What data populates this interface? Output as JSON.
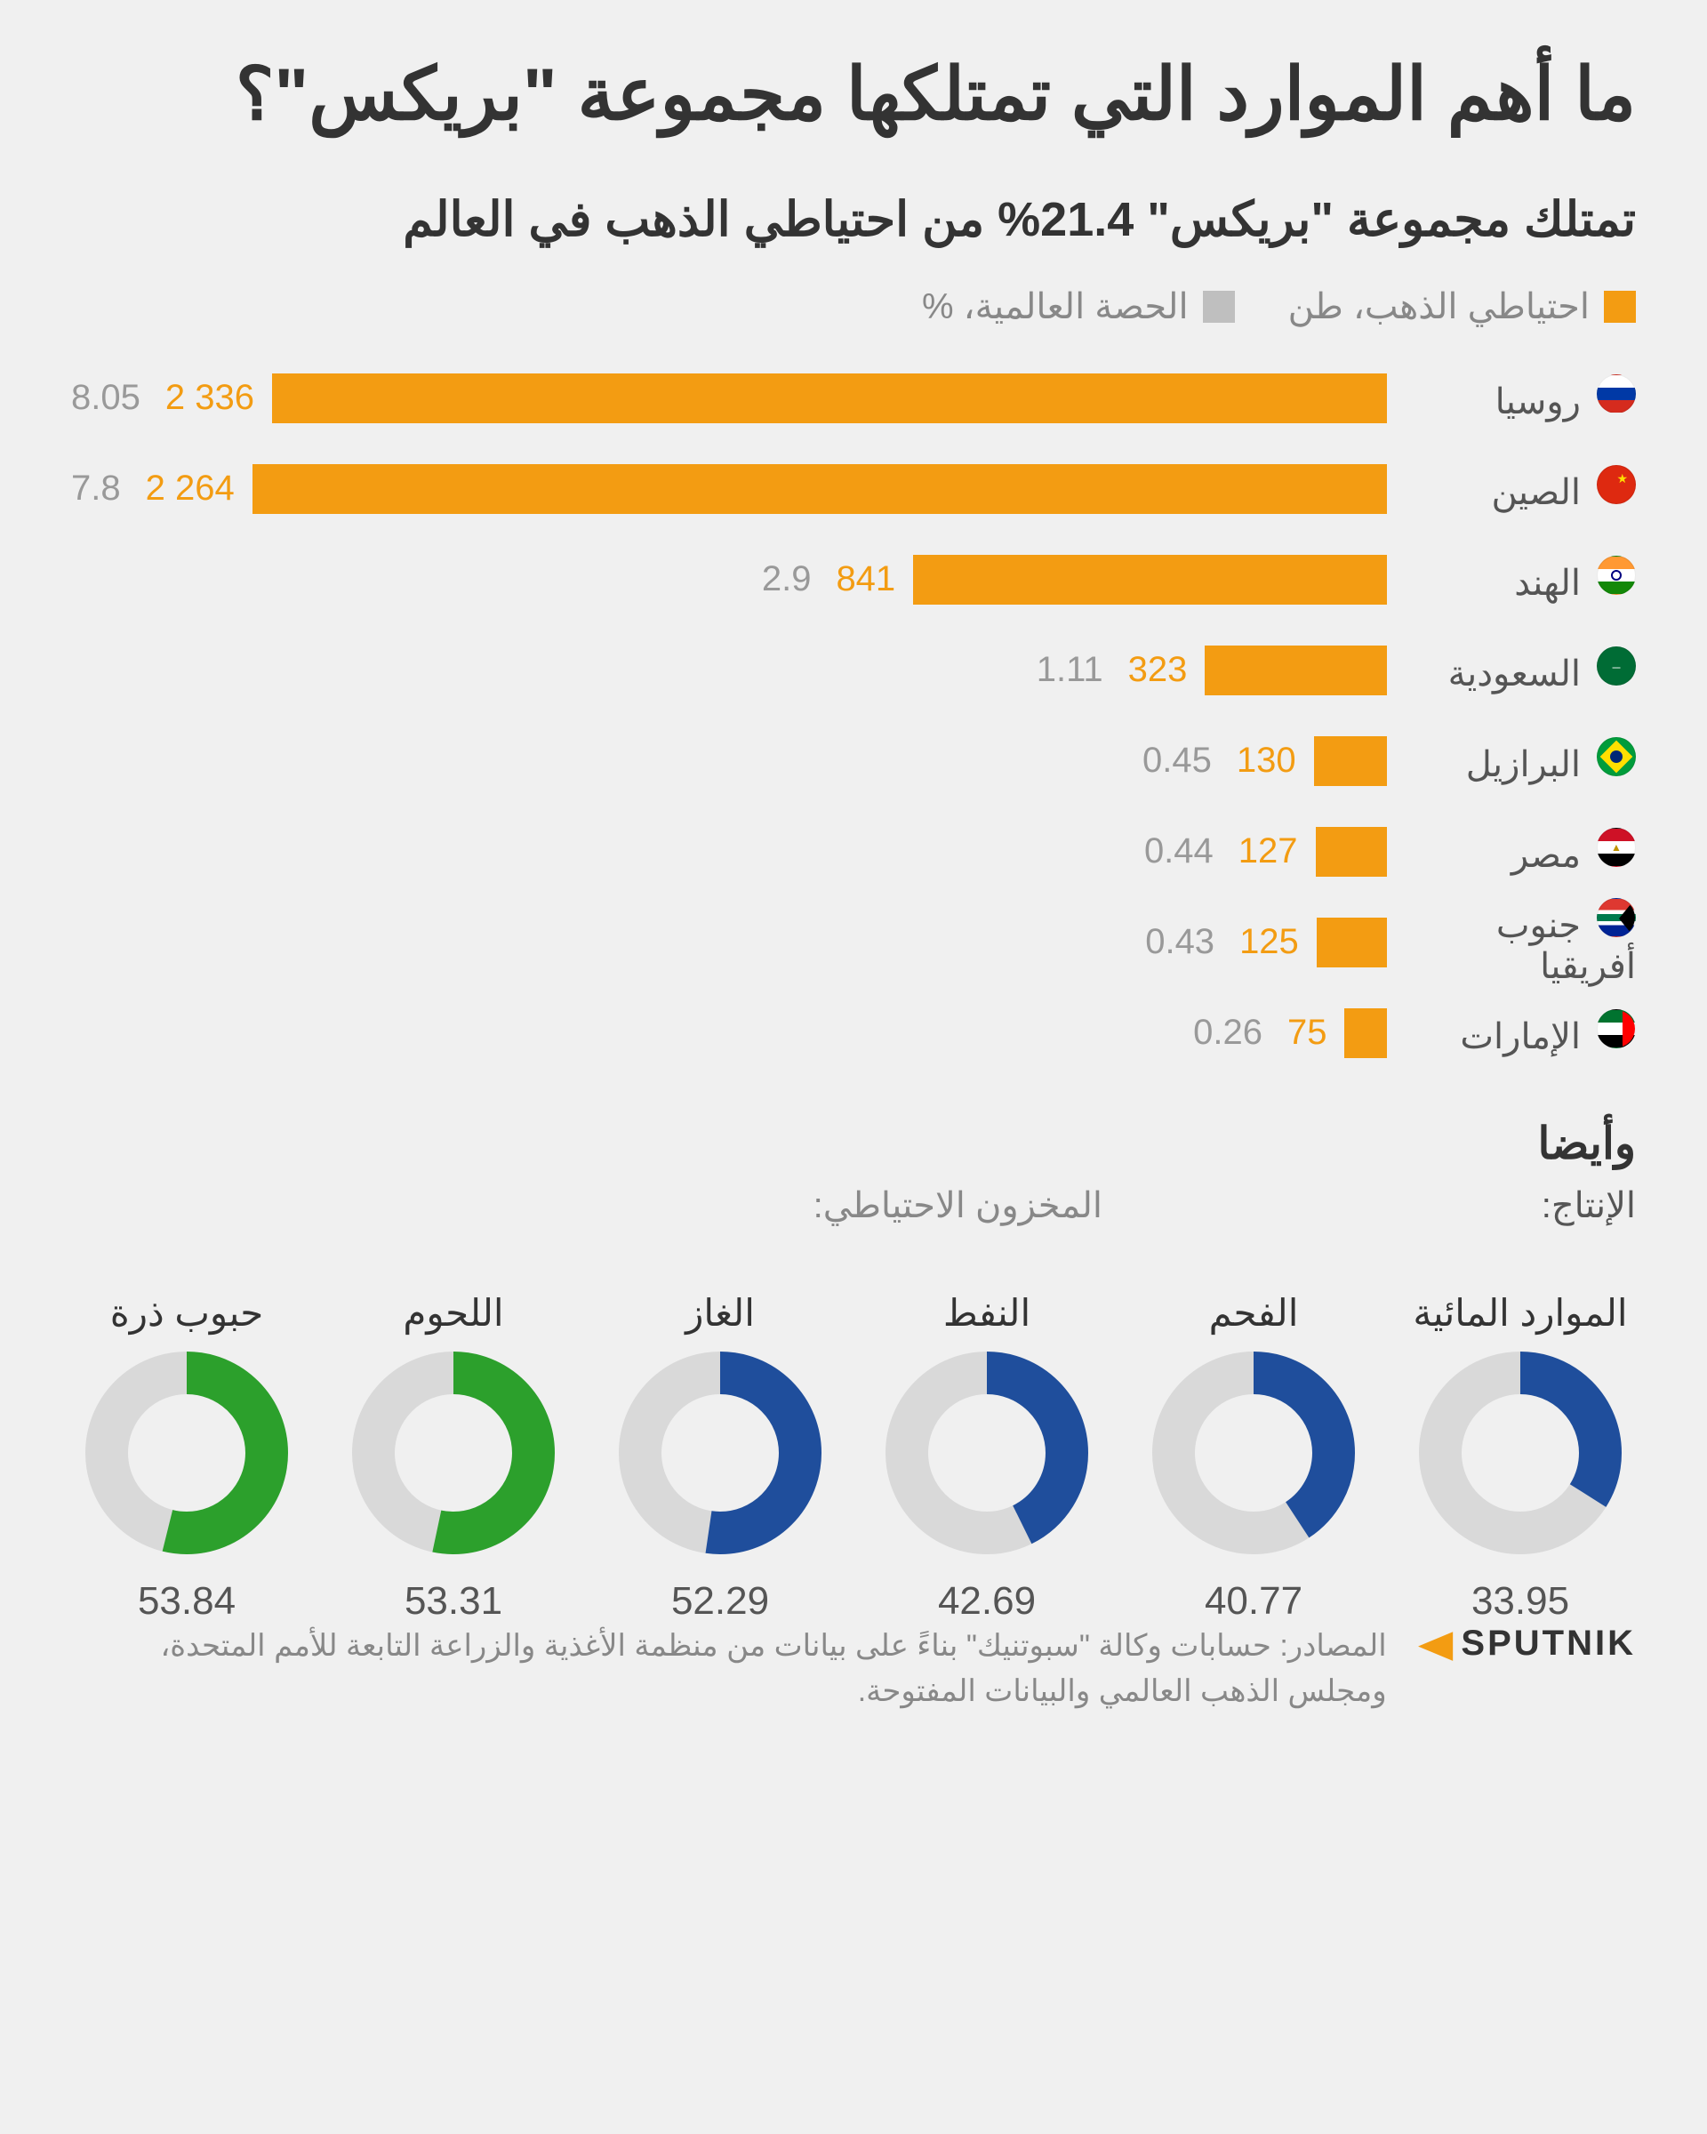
{
  "title": "ما أهم الموارد التي تمتلكها مجموعة \"بريكس\"؟",
  "subtitle": "تمتلك مجموعة \"بريكس\" 21.4% من احتياطي الذهب في العالم",
  "legend": {
    "gold_reserve": "احتياطي الذهب، طن",
    "world_share": "الحصة العالمية، %",
    "gold_color": "#f39c12",
    "share_color": "#bfbfbf"
  },
  "bar_chart": {
    "type": "bar-horizontal",
    "bar_color": "#f39c12",
    "value_color": "#f39c12",
    "share_color": "#999999",
    "max_value": 2336,
    "countries": [
      {
        "name": "روسيا",
        "tons": "2 336",
        "tons_n": 2336,
        "share": "8.05",
        "flag": "russia"
      },
      {
        "name": "الصين",
        "tons": "2 264",
        "tons_n": 2264,
        "share": "7.8",
        "flag": "china"
      },
      {
        "name": "الهند",
        "tons": "841",
        "tons_n": 841,
        "share": "2.9",
        "flag": "india"
      },
      {
        "name": "السعودية",
        "tons": "323",
        "tons_n": 323,
        "share": "1.11",
        "flag": "saudi"
      },
      {
        "name": "البرازيل",
        "tons": "130",
        "tons_n": 130,
        "share": "0.45",
        "flag": "brazil"
      },
      {
        "name": "مصر",
        "tons": "127",
        "tons_n": 127,
        "share": "0.44",
        "flag": "egypt"
      },
      {
        "name": "جنوب أفريقيا",
        "tons": "125",
        "tons_n": 125,
        "share": "0.43",
        "flag": "southafrica"
      },
      {
        "name": "الإمارات",
        "tons": "75",
        "tons_n": 75,
        "share": "0.26",
        "flag": "uae"
      }
    ]
  },
  "also": {
    "heading": "وأيضا",
    "production_label": "الإنتاج:",
    "reserves_label": "المخزون الاحتياطي:",
    "donut_track_color": "#d9d9d9",
    "donut_green": "#2ca02c",
    "donut_blue": "#1f4e9c",
    "thickness": 48,
    "items": [
      {
        "label": "حبوب ذرة",
        "value": 53.84,
        "color_key": "green"
      },
      {
        "label": "اللحوم",
        "value": 53.31,
        "color_key": "green"
      },
      {
        "label": "الغاز",
        "value": 52.29,
        "color_key": "blue"
      },
      {
        "label": "النفط",
        "value": 42.69,
        "color_key": "blue"
      },
      {
        "label": "الفحم",
        "value": 40.77,
        "color_key": "blue"
      },
      {
        "label": "الموارد المائية",
        "value": 33.95,
        "color_key": "blue"
      }
    ]
  },
  "source": "المصادر: حسابات وكالة \"سبوتنيك\" بناءً على بيانات من منظمة الأغذية والزراعة التابعة للأمم المتحدة، ومجلس الذهب العالمي والبيانات المفتوحة.",
  "logo_text": "SPUTNIK",
  "flags": {
    "russia": [
      [
        "#ffffff",
        0,
        33.3
      ],
      [
        "#0039a6",
        33.3,
        66.6
      ],
      [
        "#d52b1e",
        66.6,
        100
      ]
    ],
    "china": [
      [
        "#de2910",
        0,
        100
      ]
    ],
    "india": [
      [
        "#ff9933",
        0,
        33.3
      ],
      [
        "#ffffff",
        33.3,
        66.6
      ],
      [
        "#138808",
        66.6,
        100
      ]
    ],
    "saudi": [
      [
        "#006c35",
        0,
        100
      ]
    ],
    "brazil": [
      [
        "#009c3b",
        0,
        100
      ]
    ],
    "egypt": [
      [
        "#ce1126",
        0,
        33.3
      ],
      [
        "#ffffff",
        33.3,
        66.6
      ],
      [
        "#000000",
        66.6,
        100
      ]
    ],
    "southafrica": [
      [
        "#de3831",
        0,
        30
      ],
      [
        "#ffffff",
        30,
        40
      ],
      [
        "#007a4d",
        40,
        60
      ],
      [
        "#ffffff",
        60,
        70
      ],
      [
        "#002395",
        70,
        100
      ]
    ],
    "uae": [
      [
        "#00732f",
        0,
        33.3
      ],
      [
        "#ffffff",
        33.3,
        66.6
      ],
      [
        "#000000",
        66.6,
        100
      ]
    ]
  }
}
